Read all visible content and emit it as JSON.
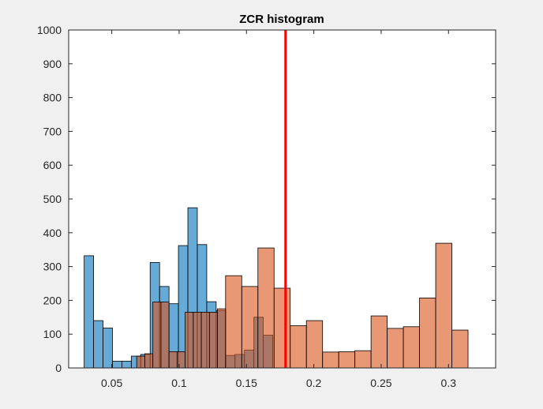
{
  "chart_data": {
    "type": "bar",
    "title": "ZCR histogram",
    "xlabel": "",
    "ylabel": "",
    "xlim": [
      0.018,
      0.335
    ],
    "ylim": [
      0,
      1000
    ],
    "xticks": [
      {
        "value": 0.05,
        "label": "0.05"
      },
      {
        "value": 0.1,
        "label": "0.1"
      },
      {
        "value": 0.15,
        "label": "0.15"
      },
      {
        "value": 0.2,
        "label": "0.2"
      },
      {
        "value": 0.25,
        "label": "0.25"
      },
      {
        "value": 0.3,
        "label": "0.3"
      }
    ],
    "yticks": [
      {
        "value": 0,
        "label": "0"
      },
      {
        "value": 100,
        "label": "100"
      },
      {
        "value": 200,
        "label": "200"
      },
      {
        "value": 300,
        "label": "300"
      },
      {
        "value": 400,
        "label": "400"
      },
      {
        "value": 500,
        "label": "500"
      },
      {
        "value": 600,
        "label": "600"
      },
      {
        "value": 700,
        "label": "700"
      },
      {
        "value": 800,
        "label": "800"
      },
      {
        "value": 900,
        "label": "900"
      },
      {
        "value": 1000,
        "label": "1000"
      }
    ],
    "grid": false,
    "legend": "none",
    "threshold": {
      "x": 0.179,
      "color": "#ff0000"
    },
    "series": [
      {
        "color": "#0072bd",
        "alpha": 0.6,
        "bins": [
          {
            "x0": 0.0295,
            "x1": 0.0365,
            "count": 332
          },
          {
            "x0": 0.0365,
            "x1": 0.0435,
            "count": 140
          },
          {
            "x0": 0.0435,
            "x1": 0.0505,
            "count": 118
          },
          {
            "x0": 0.0505,
            "x1": 0.0575,
            "count": 20
          },
          {
            "x0": 0.0575,
            "x1": 0.0645,
            "count": 20
          },
          {
            "x0": 0.0645,
            "x1": 0.0715,
            "count": 35
          },
          {
            "x0": 0.0715,
            "x1": 0.0785,
            "count": 40
          },
          {
            "x0": 0.0785,
            "x1": 0.0855,
            "count": 312
          },
          {
            "x0": 0.0855,
            "x1": 0.0925,
            "count": 241
          },
          {
            "x0": 0.0925,
            "x1": 0.0995,
            "count": 190
          },
          {
            "x0": 0.0995,
            "x1": 0.1065,
            "count": 362
          },
          {
            "x0": 0.1065,
            "x1": 0.1135,
            "count": 474
          },
          {
            "x0": 0.1135,
            "x1": 0.1205,
            "count": 365
          },
          {
            "x0": 0.1205,
            "x1": 0.1275,
            "count": 196
          },
          {
            "x0": 0.1275,
            "x1": 0.1345,
            "count": 170
          },
          {
            "x0": 0.1345,
            "x1": 0.1415,
            "count": 37
          },
          {
            "x0": 0.1415,
            "x1": 0.1485,
            "count": 40
          },
          {
            "x0": 0.1485,
            "x1": 0.1555,
            "count": 53
          },
          {
            "x0": 0.1555,
            "x1": 0.1625,
            "count": 150
          },
          {
            "x0": 0.1625,
            "x1": 0.1695,
            "count": 97
          }
        ]
      },
      {
        "color": "#d95319",
        "alpha": 0.6,
        "bins": [
          {
            "x0": 0.0685,
            "x1": 0.0745,
            "count": 35
          },
          {
            "x0": 0.0745,
            "x1": 0.0805,
            "count": 42
          },
          {
            "x0": 0.0805,
            "x1": 0.0865,
            "count": 195
          },
          {
            "x0": 0.0865,
            "x1": 0.0925,
            "count": 195
          },
          {
            "x0": 0.0925,
            "x1": 0.0985,
            "count": 48
          },
          {
            "x0": 0.0985,
            "x1": 0.1045,
            "count": 48
          },
          {
            "x0": 0.1045,
            "x1": 0.1105,
            "count": 165
          },
          {
            "x0": 0.1105,
            "x1": 0.1165,
            "count": 165
          },
          {
            "x0": 0.1165,
            "x1": 0.1225,
            "count": 165
          },
          {
            "x0": 0.1225,
            "x1": 0.1285,
            "count": 165
          },
          {
            "x0": 0.1285,
            "x1": 0.1345,
            "count": 175
          },
          {
            "x0": 0.1345,
            "x1": 0.1465,
            "count": 273
          },
          {
            "x0": 0.1465,
            "x1": 0.1585,
            "count": 241
          },
          {
            "x0": 0.1585,
            "x1": 0.1705,
            "count": 355
          },
          {
            "x0": 0.1705,
            "x1": 0.1825,
            "count": 236
          },
          {
            "x0": 0.1825,
            "x1": 0.1945,
            "count": 125
          },
          {
            "x0": 0.1945,
            "x1": 0.2065,
            "count": 140
          },
          {
            "x0": 0.2065,
            "x1": 0.2185,
            "count": 47
          },
          {
            "x0": 0.2185,
            "x1": 0.2305,
            "count": 48
          },
          {
            "x0": 0.2305,
            "x1": 0.2425,
            "count": 51
          },
          {
            "x0": 0.2425,
            "x1": 0.2545,
            "count": 154
          },
          {
            "x0": 0.2545,
            "x1": 0.2665,
            "count": 117
          },
          {
            "x0": 0.2665,
            "x1": 0.2785,
            "count": 122
          },
          {
            "x0": 0.2785,
            "x1": 0.2905,
            "count": 207
          },
          {
            "x0": 0.2905,
            "x1": 0.3025,
            "count": 369
          },
          {
            "x0": 0.3025,
            "x1": 0.3145,
            "count": 112
          }
        ]
      }
    ]
  }
}
